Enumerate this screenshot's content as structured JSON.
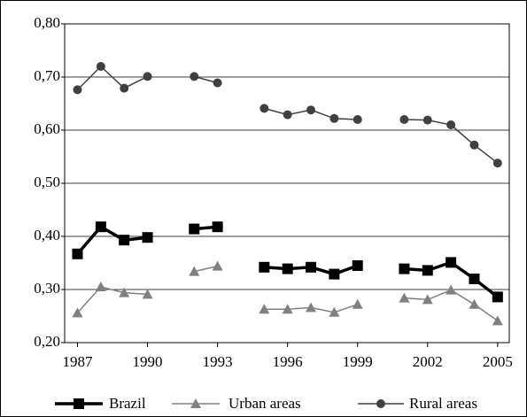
{
  "chart_data": {
    "type": "line",
    "x": [
      1987,
      1988,
      1989,
      1990,
      1991,
      1992,
      1993,
      1994,
      1995,
      1996,
      1997,
      1998,
      1999,
      2000,
      2001,
      2002,
      2003,
      2004,
      2005
    ],
    "series": [
      {
        "name": "Brazil",
        "color": "#000000",
        "width": 3.5,
        "marker": "square",
        "values": [
          0.367,
          0.418,
          0.393,
          0.398,
          null,
          0.414,
          0.418,
          null,
          0.342,
          0.339,
          0.342,
          0.329,
          0.345,
          null,
          0.339,
          0.336,
          0.351,
          0.32,
          0.286
        ]
      },
      {
        "name": "Urban areas",
        "color": "#808080",
        "width": 1.5,
        "marker": "triangle",
        "values": [
          0.256,
          0.305,
          0.294,
          0.291,
          null,
          0.334,
          0.344,
          null,
          0.263,
          0.263,
          0.266,
          0.257,
          0.272,
          null,
          0.284,
          0.281,
          0.299,
          0.272,
          0.241
        ]
      },
      {
        "name": "Rural areas",
        "color": "#404040",
        "width": 1.5,
        "marker": "circle",
        "values": [
          0.676,
          0.72,
          0.679,
          0.701,
          null,
          0.701,
          0.689,
          null,
          0.641,
          0.629,
          0.638,
          0.622,
          0.62,
          null,
          0.62,
          0.619,
          0.61,
          0.572,
          0.538
        ]
      }
    ],
    "xlim": [
      1986.45,
      2005.5
    ],
    "xticks": [
      1987,
      1990,
      1993,
      1996,
      1999,
      2002,
      2005
    ],
    "ylim": [
      0.2,
      0.8
    ],
    "yticks": [
      {
        "value": 0.2,
        "label": "0,20"
      },
      {
        "value": 0.3,
        "label": "0,30"
      },
      {
        "value": 0.4,
        "label": "0,40"
      },
      {
        "value": 0.5,
        "label": "0,50"
      },
      {
        "value": 0.6,
        "label": "0,60"
      },
      {
        "value": 0.7,
        "label": "0,70"
      },
      {
        "value": 0.8,
        "label": "0,80"
      }
    ],
    "grid": true,
    "legend": "bottom"
  }
}
